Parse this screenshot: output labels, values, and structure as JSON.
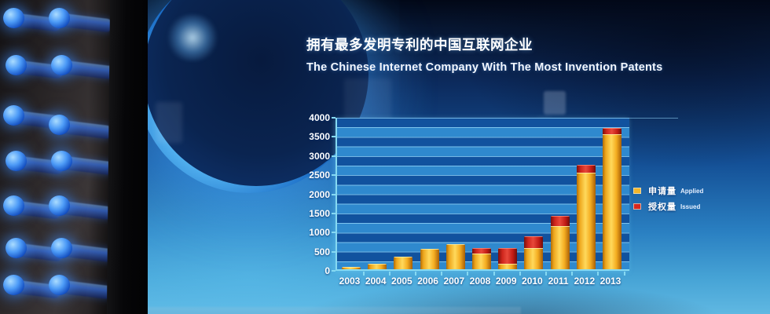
{
  "screen": {
    "title_zh": "拥有最多发明专利的中国互联网企业",
    "title_en": "The Chinese Internet Company With The Most Invention Patents"
  },
  "chart_data": {
    "type": "bar",
    "stacked": true,
    "title": "拥有最多发明专利的中国互联网企业 / The Chinese Internet Company With The Most Invention Patents",
    "categories": [
      "2003",
      "2004",
      "2005",
      "2006",
      "2007",
      "2008",
      "2009",
      "2010",
      "2011",
      "2012",
      "2013"
    ],
    "series": [
      {
        "name_zh": "申请量",
        "name_en": "Applied",
        "color": "#f3b62c",
        "values": [
          50,
          150,
          330,
          540,
          650,
          410,
          150,
          550,
          1120,
          2520,
          3520
        ]
      },
      {
        "name_zh": "授权量",
        "name_en": "Issued",
        "color": "#d7261e",
        "values": [
          0,
          0,
          0,
          0,
          0,
          150,
          400,
          310,
          270,
          200,
          170
        ]
      }
    ],
    "xlabel": "",
    "ylabel": "",
    "ylim": [
      0,
      4000
    ],
    "yticks": [
      "4000",
      "3500",
      "3000",
      "2500",
      "2000",
      "1500",
      "1000",
      "500",
      "0"
    ],
    "grid": "horizontal bands every 250",
    "legend_position": "right"
  },
  "colors": {
    "axis": "#86d9f2",
    "stripe_dark": "#11529e",
    "stripe_light": "#2f89ce",
    "bar_applied": "#f3b62c",
    "bar_issued": "#d7261e",
    "text": "#ffffff"
  }
}
